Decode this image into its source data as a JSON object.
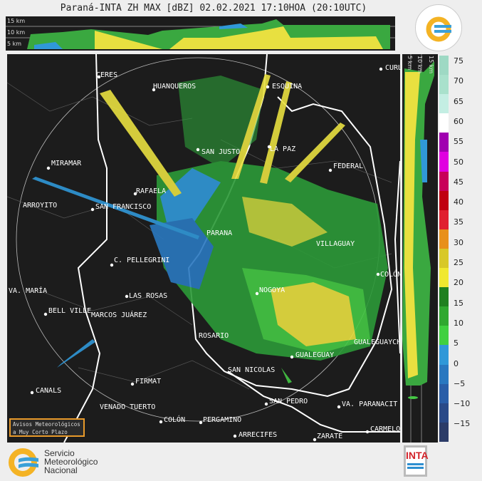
{
  "title": "Paraná-INTA ZH MAX [dBZ] 02.02.2021 17:10HOA (20:10UTC)",
  "top_panel": {
    "levels": [
      "15 km",
      "10 km",
      "5 km"
    ]
  },
  "side_panel": {
    "levels": [
      "5 km",
      "10 km",
      "15 km"
    ]
  },
  "colorbar": {
    "unit": "dBZ",
    "ticks": [
      "75",
      "70",
      "65",
      "60",
      "55",
      "50",
      "45",
      "40",
      "35",
      "30",
      "25",
      "20",
      "15",
      "10",
      "5",
      "0",
      "−5",
      "−10",
      "−15"
    ],
    "colors": [
      "#9ed9c4",
      "#a9e1cc",
      "#c4eee3",
      "#ffffff",
      "#a000b0",
      "#e000e0",
      "#c8005a",
      "#c00010",
      "#e02030",
      "#e8901a",
      "#d8c828",
      "#f0e830",
      "#208020",
      "#30a830",
      "#40d040",
      "#3098d8",
      "#2a78c0",
      "#2a5ea8",
      "#2a4a88",
      "#2c3c68"
    ]
  },
  "cities": [
    "CERES",
    "HUANQUEROS",
    "ESQUINA",
    "CURU",
    "SAN JUSTO",
    "LA PAZ",
    "FEDERAL",
    "MIRAMAR",
    "RAFAELA",
    "ARROYITO",
    "SAN FRANCISCO",
    "PARANA",
    "VILLAGUAY",
    "C. PELLEGRINI",
    "COLÓN",
    "VA. MARÍA",
    "NOGOYA",
    "LAS ROSAS",
    "BELL VILLE",
    "MARCOS JUÁREZ",
    "ROSARIO",
    "GUALEGUAYCH",
    "GUALEGUAY",
    "SAN NICOLAS",
    "FIRMAT",
    "CANALS",
    "SAN PEDRO",
    "VA. PARANACIT",
    "VENADO TUERTO",
    "COLÓN",
    "PERGAMINO",
    "CARMELO",
    "ARRECIFES",
    "ZARATE"
  ],
  "warning_box": {
    "line1": "Avisos Meteorológicos",
    "line2": "a Muy Corto Plazo"
  },
  "logos": {
    "smn": "Servicio Meteorológico Nacional",
    "smn_line1": "Servicio",
    "smn_line2": "Meteorológico",
    "smn_line3": "Nacional",
    "seal": "SERVICIO METEOROLÓGICO NACIONAL ARGENTINA",
    "inta": "INTA"
  }
}
